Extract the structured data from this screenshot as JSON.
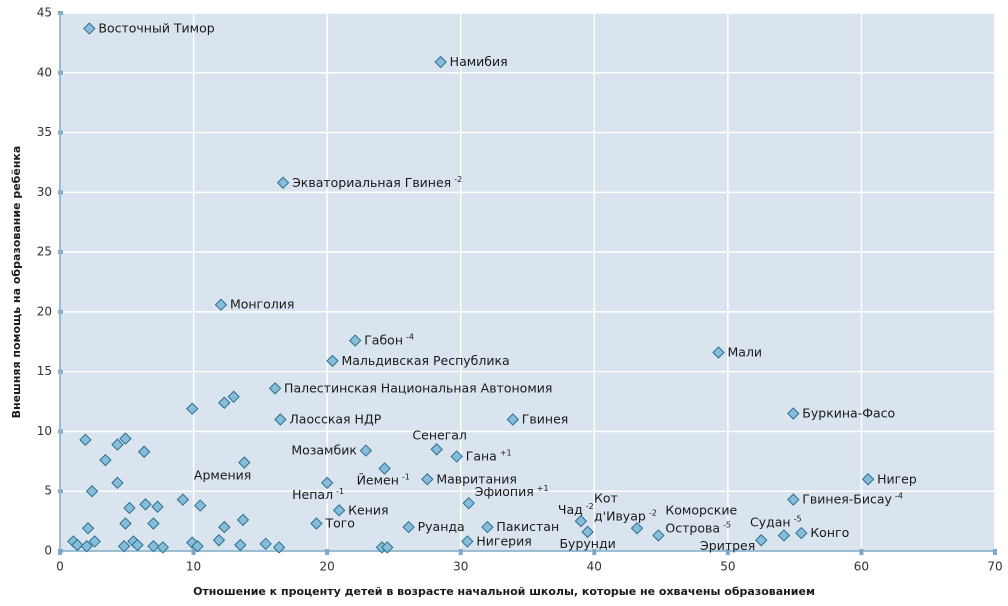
{
  "chart_data": {
    "type": "scatter",
    "x_label": "Отношение к проценту детей в возрасте начальной школы, которые не охвачены образованием",
    "y_label": "Внешняя помощь на образование ребёнка",
    "xlim": [
      0,
      70
    ],
    "xticks": [
      0,
      10,
      20,
      30,
      40,
      50,
      60,
      70
    ],
    "ylim": [
      0,
      45
    ],
    "yticks": [
      0,
      5,
      10,
      15,
      20,
      25,
      30,
      35,
      40,
      45
    ],
    "grid": true,
    "color": "#86bdd8",
    "edge_color": "#2e6f91",
    "background": "#d9e4ee",
    "x": [
      2.2,
      28.5,
      16.7,
      12.05,
      22.1,
      20.4,
      49.3,
      16.1,
      16.5,
      33.9,
      54.9,
      28.2,
      29.7,
      22.9,
      13.8,
      24.3,
      27.5,
      60.5,
      20.0,
      30.6,
      54.9,
      20.9,
      19.2,
      26.1,
      32.0,
      30.5,
      39.0,
      43.2,
      39.5,
      44.8,
      52.5,
      54.2,
      55.5,
      1.0,
      1.3,
      2.0,
      2.6,
      2.1,
      1.9,
      2.4,
      3.4,
      4.3,
      4.9,
      4.3,
      6.3,
      5.2,
      4.9,
      4.8,
      5.5,
      5.8,
      6.4,
      7.3,
      7.0,
      7.0,
      7.7,
      9.2,
      9.9,
      10.5,
      9.9,
      10.3,
      11.9,
      12.3,
      12.3,
      13.0,
      13.7,
      13.5,
      15.4,
      16.4,
      24.1,
      24.5
    ],
    "values": [
      43.7,
      40.9,
      30.8,
      20.6,
      17.6,
      15.9,
      16.6,
      13.6,
      11.0,
      11.0,
      11.5,
      8.5,
      7.9,
      8.4,
      7.4,
      6.9,
      6.0,
      6.0,
      5.7,
      4.0,
      4.3,
      3.4,
      2.3,
      2.0,
      2.0,
      0.8,
      2.5,
      1.9,
      1.6,
      1.3,
      0.9,
      1.3,
      1.5,
      0.8,
      0.5,
      0.4,
      0.8,
      1.9,
      9.3,
      5.0,
      7.6,
      8.9,
      9.4,
      5.7,
      8.3,
      3.6,
      2.3,
      0.4,
      0.8,
      0.5,
      3.9,
      3.7,
      2.3,
      0.4,
      0.3,
      4.3,
      11.9,
      3.8,
      0.7,
      0.4,
      0.9,
      2.0,
      12.4,
      12.9,
      2.6,
      0.5,
      0.6,
      0.3,
      0.3,
      0.3
    ],
    "point_labels": [
      "Восточный Тимор",
      "Намибия",
      "Экваториальная Гвинея",
      "Монголия",
      "Габон",
      "Мальдивская Республика",
      "Мали",
      "Палестинская Национальная Автономия",
      "Лаосская НДР",
      "Гвинея",
      "Буркина-Фасо",
      "Сенегал",
      "Гана",
      "Мозамбик",
      "Армения",
      "Йемен",
      "Мавритания",
      "Нигер",
      "Непал",
      "Эфиопия",
      "Гвинея-Бисау",
      "Кения",
      "Того",
      "Руанда",
      "Пакистан",
      "Нигерия",
      "Чад",
      [
        "Кот",
        "д'Ивуар"
      ],
      "Бурунди",
      [
        "Коморские",
        "Острова"
      ],
      "Эритрея",
      "Судан",
      "Конго",
      null,
      null,
      null,
      null,
      null,
      null,
      null,
      null,
      null,
      null,
      null,
      null,
      null,
      null,
      null,
      null,
      null,
      null,
      null,
      null,
      null,
      null,
      null,
      null,
      null,
      null,
      null,
      null,
      null,
      null,
      null,
      null,
      null,
      null,
      null,
      null,
      null
    ],
    "label_superscripts": [
      null,
      null,
      "-2",
      null,
      "-4",
      null,
      null,
      null,
      null,
      null,
      null,
      null,
      "+1",
      null,
      null,
      "-1",
      null,
      null,
      "-1",
      "+1",
      "-4",
      null,
      null,
      null,
      null,
      null,
      "-2",
      "-2",
      null,
      "-5",
      null,
      "-5",
      null,
      null,
      null,
      null,
      null,
      null,
      null,
      null,
      null,
      null,
      null,
      null,
      null,
      null,
      null,
      null,
      null,
      null,
      null,
      null,
      null,
      null,
      null,
      null,
      null,
      null,
      null,
      null,
      null,
      null,
      null,
      null,
      null,
      null,
      null,
      null,
      null,
      null
    ]
  }
}
